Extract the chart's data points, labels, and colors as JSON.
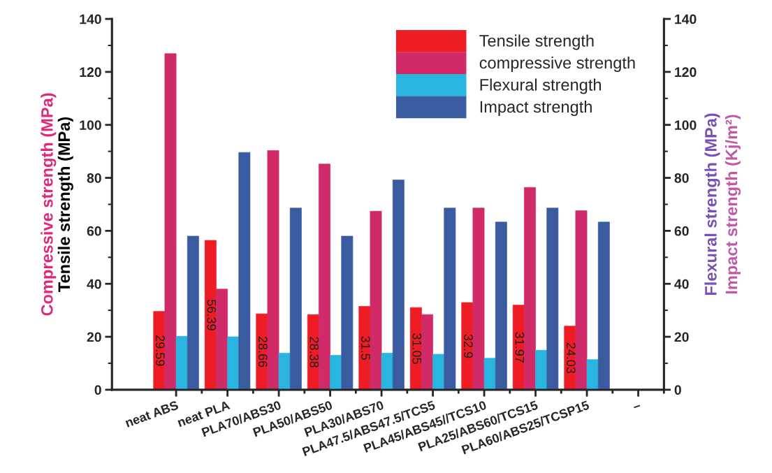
{
  "chart_data": {
    "type": "bar",
    "ylabel": "Tensile strength (MPa)",
    "y2label": "Flexural strength (MPa)",
    "annotations": [
      "Compressive strength (MPa)",
      "Impact strength (Kj/m²)"
    ],
    "categories": [
      "neat ABS",
      "neat PLA",
      "PLA70/ABS30",
      "PLA50/ABS50",
      "PLA30/ABS70",
      "PLA47.5/ABS47.5/TCS5",
      "PLA45/ABS45//TCS10",
      "PLA25/ABS60/TCS15",
      "PLA60/ABS25/TCSP15",
      "–"
    ],
    "series": [
      {
        "name": "Tensile strength",
        "color": "#ee1c25",
        "values": [
          29.59,
          56.39,
          28.66,
          28.38,
          31.5,
          31.05,
          32.9,
          31.97,
          24.03,
          null
        ],
        "value_labels": [
          "29.59",
          "56.39",
          "28.66",
          "28.38",
          "31.5",
          "31.05",
          "32.9",
          "31.97",
          "24.03",
          null
        ]
      },
      {
        "name": "compressive strength",
        "color": "#d12a68",
        "values": [
          126.9,
          38,
          90.3,
          85.2,
          67.4,
          28.4,
          68.6,
          76.4,
          67.6,
          null
        ]
      },
      {
        "name": "Flexural strength",
        "color": "#29b5e0",
        "axis": "y2",
        "values": [
          20.2,
          20,
          13.8,
          13,
          13.8,
          13.4,
          11.9,
          14.9,
          11.4,
          null
        ]
      },
      {
        "name": "Impact strength",
        "color": "#3a5ba0",
        "axis": "y2",
        "values": [
          58,
          89.6,
          68.6,
          58,
          79.2,
          68.6,
          63.3,
          68.6,
          63.3,
          null
        ]
      }
    ],
    "ylim": [
      0,
      140
    ],
    "yticks": [
      0,
      20,
      40,
      60,
      80,
      100,
      120,
      140
    ],
    "y2lim": [
      0,
      140
    ],
    "y2ticks": [
      0,
      20,
      40,
      60,
      80,
      100,
      120,
      140
    ],
    "legend": "top right"
  }
}
